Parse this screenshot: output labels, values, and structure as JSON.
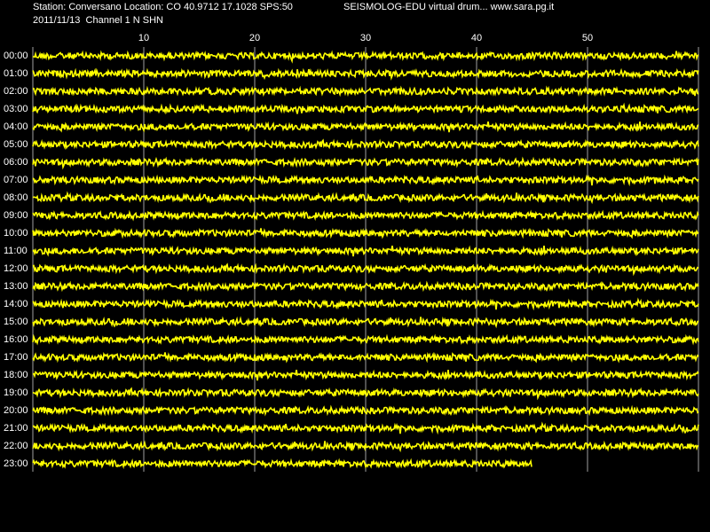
{
  "chart_data": {
    "type": "drum",
    "title": "Station: Conversano Location: CO 40.9712 17.1028 SPS:50",
    "subtitle": "2011/11/13  Channel 1 N SHN",
    "annotation": "SEISMOLOG-EDU virtual drum... www.sara.pg.it",
    "categories": [
      "00:00",
      "01:00",
      "02:00",
      "03:00",
      "04:00",
      "05:00",
      "06:00",
      "07:00",
      "08:00",
      "09:00",
      "10:00",
      "11:00",
      "12:00",
      "13:00",
      "14:00",
      "15:00",
      "16:00",
      "17:00",
      "18:00",
      "19:00",
      "20:00",
      "21:00",
      "22:00",
      "23:00"
    ],
    "values": [
      60,
      60,
      60,
      60,
      60,
      60,
      60,
      60,
      60,
      60,
      60,
      60,
      60,
      60,
      60,
      60,
      60,
      60,
      60,
      60,
      60,
      60,
      60,
      45
    ],
    "color": "#ffff00",
    "xlim": [
      0,
      60
    ],
    "xticks": [
      10,
      20,
      30,
      40,
      50
    ],
    "grid": true
  }
}
